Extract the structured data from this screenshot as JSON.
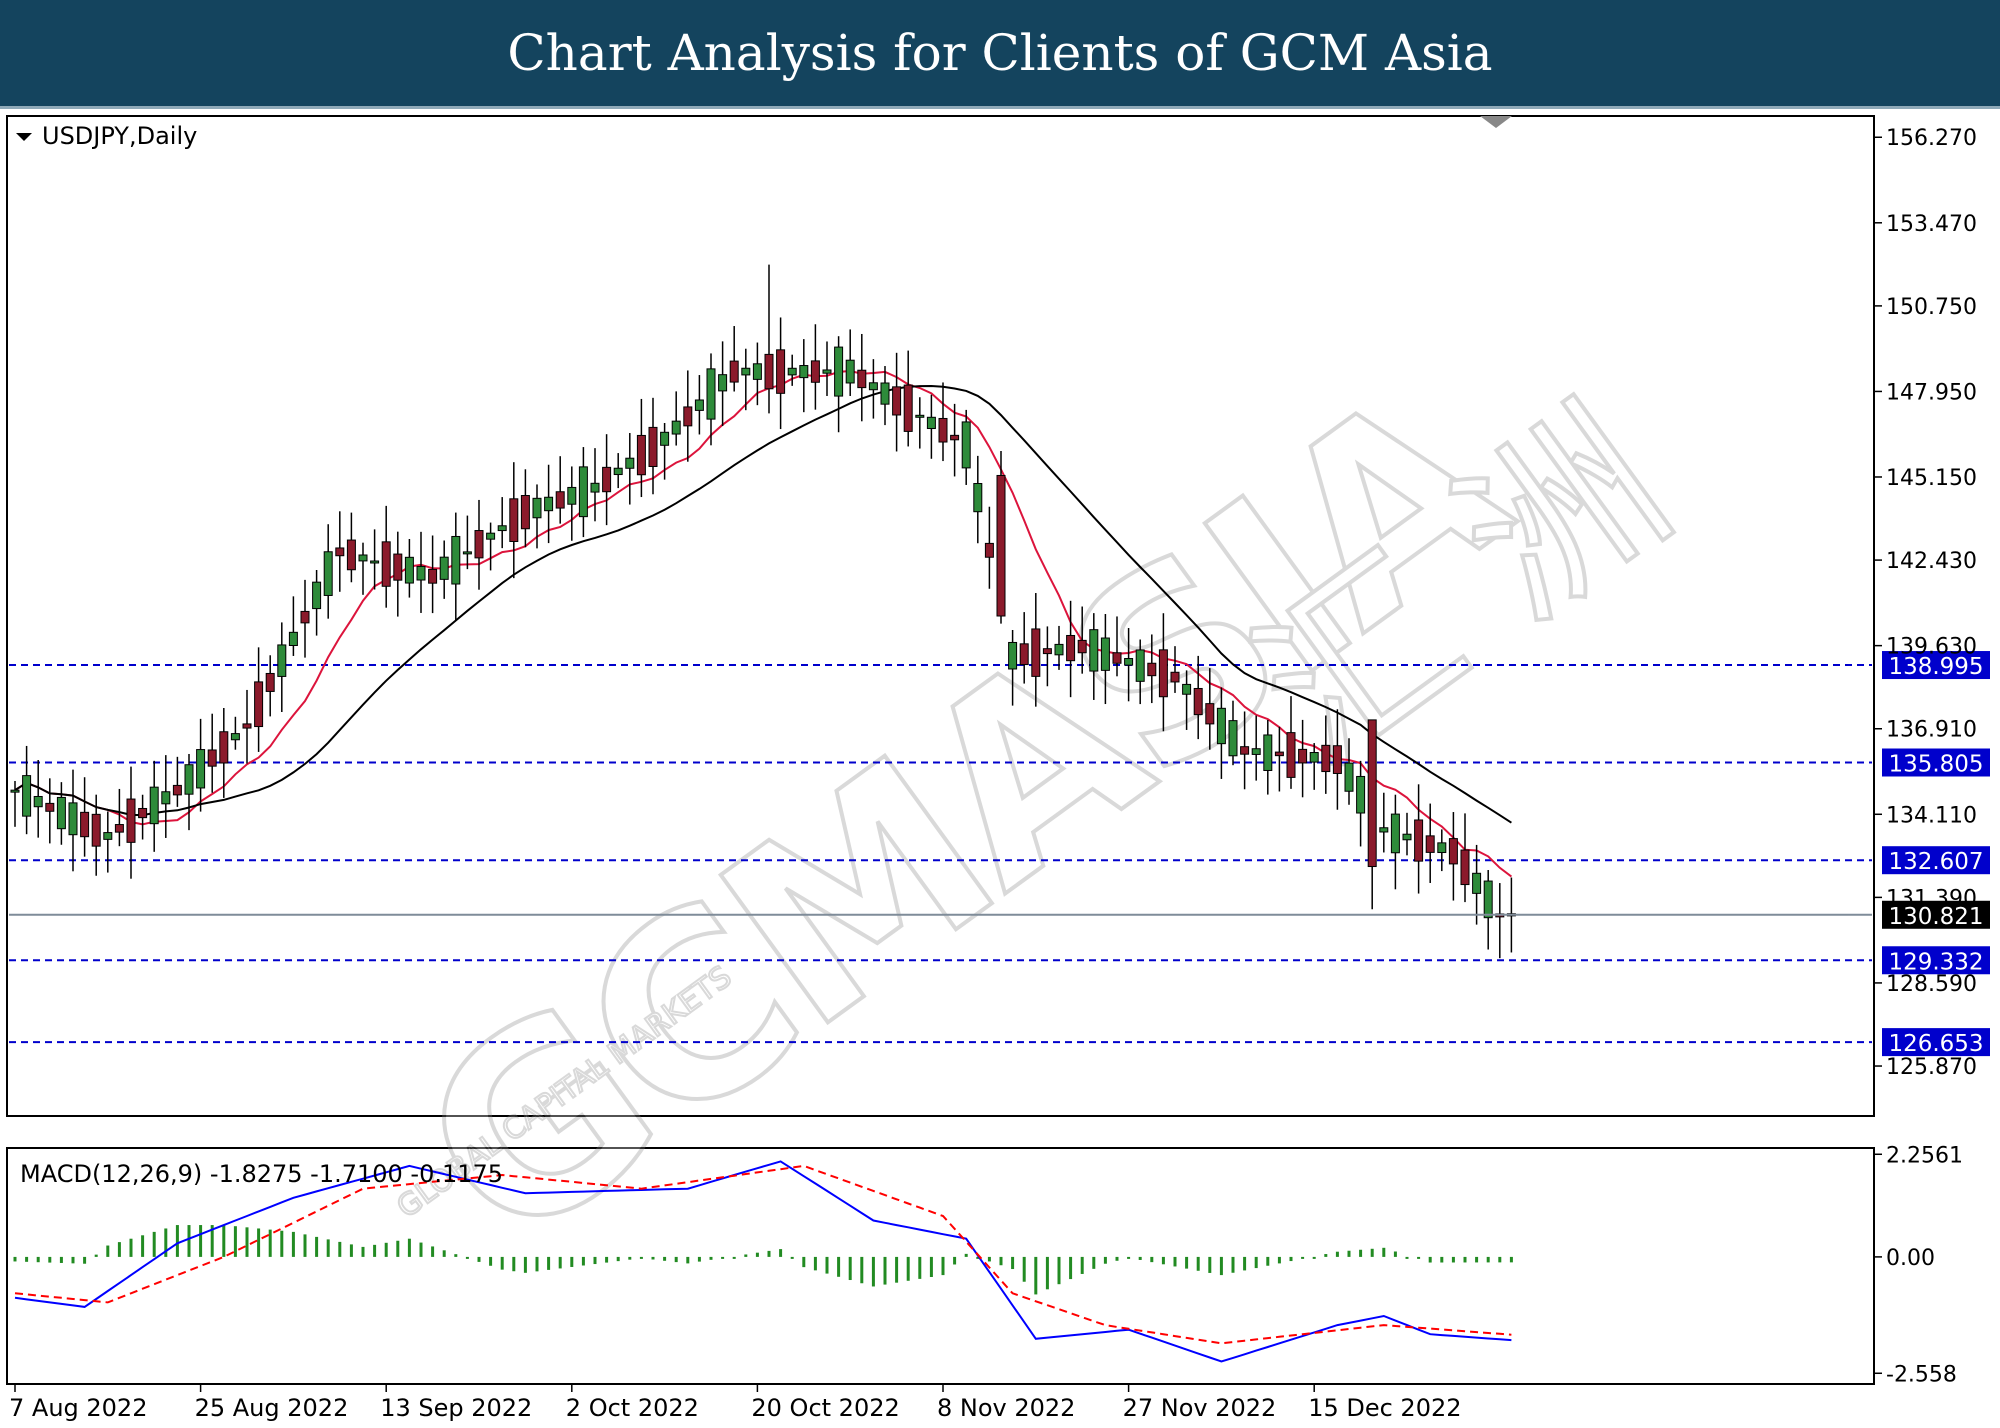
{
  "banner": {
    "title": "Chart Analysis for Clients of GCM Asia"
  },
  "chart_data": {
    "type": "candlestick",
    "symbol_label": "USDJPY,Daily",
    "price_axis": {
      "min": 124.3,
      "max": 156.9,
      "ticks": [
        "156.270",
        "153.470",
        "150.750",
        "147.950",
        "145.150",
        "142.430",
        "139.630",
        "136.910",
        "134.110",
        "131.390",
        "128.590",
        "125.870"
      ]
    },
    "date_labels": [
      {
        "index": 0,
        "label": "7 Aug 2022"
      },
      {
        "index": 16,
        "label": "25 Aug 2022"
      },
      {
        "index": 32,
        "label": "13 Sep 2022"
      },
      {
        "index": 48,
        "label": "2 Oct 2022"
      },
      {
        "index": 64,
        "label": "20 Oct 2022"
      },
      {
        "index": 80,
        "label": "8 Nov 2022"
      },
      {
        "index": 96,
        "label": "27 Nov 2022"
      },
      {
        "index": 112,
        "label": "15 Dec 2022"
      }
    ],
    "current_price": "130.821",
    "levels": [
      "138.995",
      "135.805",
      "132.607",
      "129.332",
      "126.653"
    ],
    "colors": {
      "bull": "#2e8b3a",
      "bear": "#8b1a2b",
      "ma_fast": "#dc143c",
      "ma_slow": "#000000",
      "level": "#0000cc",
      "macd_line": "#0000ff",
      "signal_line": "#ff0000",
      "hist": "#228b22"
    },
    "macd": {
      "label": "MACD(12,26,9) -1.8275 -1.7100 -0.1175",
      "ticks": [
        "2.2561",
        "0.00",
        "-2.558"
      ],
      "range": [
        -2.75,
        2.35
      ]
    },
    "watermark": {
      "main": "GCMASIA",
      "sub": "GLOBAL CAPITAL MARKETS",
      "chinese": "汇 洲"
    }
  }
}
